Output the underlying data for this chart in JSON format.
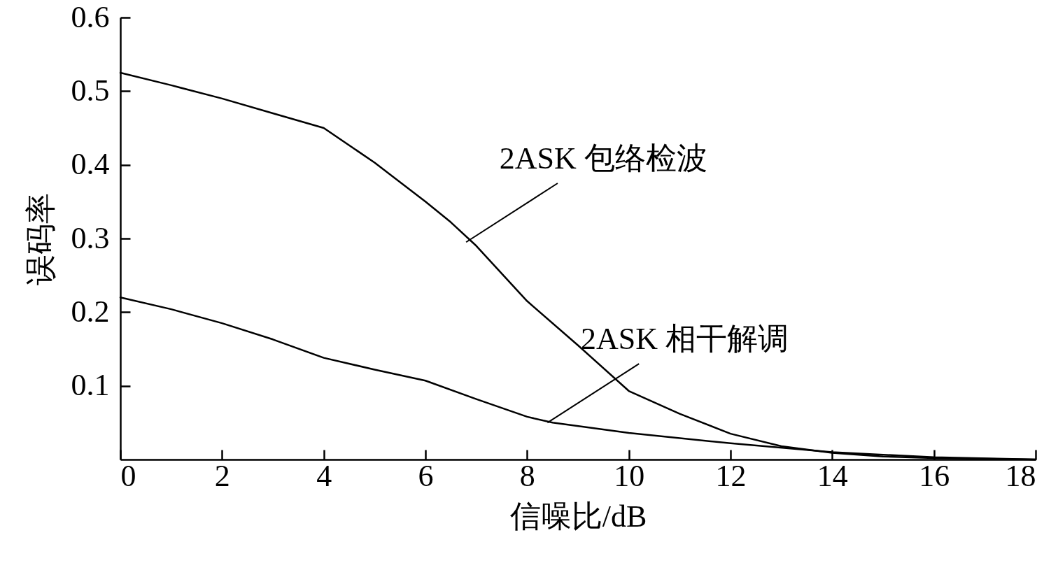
{
  "chart_data": {
    "type": "line",
    "xlabel": "信噪比/dB",
    "ylabel": "误码率",
    "xlim": [
      0,
      18
    ],
    "ylim": [
      0,
      0.6
    ],
    "xticks": [
      0,
      2,
      4,
      6,
      8,
      10,
      12,
      14,
      16,
      18
    ],
    "yticks": [
      0.1,
      0.2,
      0.3,
      0.4,
      0.5,
      0.6
    ],
    "grid": false,
    "marker": "none",
    "line_style": "solid",
    "series": [
      {
        "color": "#000000",
        "x": [
          0,
          1,
          2,
          3,
          4,
          5,
          6,
          6.5,
          7,
          8,
          9,
          10,
          11,
          12,
          13,
          14,
          15,
          16,
          17,
          18
        ],
        "values": [
          0.525,
          0.508,
          0.49,
          0.47,
          0.45,
          0.403,
          0.35,
          0.322,
          0.29,
          0.215,
          0.155,
          0.093,
          0.062,
          0.035,
          0.018,
          0.009,
          0.004,
          0.002,
          0.001,
          0
        ]
      },
      {
        "color": "#000000",
        "x": [
          0,
          1,
          2,
          3,
          4,
          5,
          6,
          7,
          8,
          8.5,
          10,
          12,
          14,
          16,
          18
        ],
        "values": [
          0.22,
          0.204,
          0.185,
          0.163,
          0.138,
          0.122,
          0.107,
          0.082,
          0.058,
          0.05,
          0.036,
          0.022,
          0.01,
          0.003,
          0
        ]
      }
    ],
    "annotations": [
      {
        "text": "2ASK 包络检波",
        "x": 6.8,
        "y": 0.295
      },
      {
        "text": "2ASK 相干解调",
        "x": 8.4,
        "y": 0.05
      }
    ]
  }
}
